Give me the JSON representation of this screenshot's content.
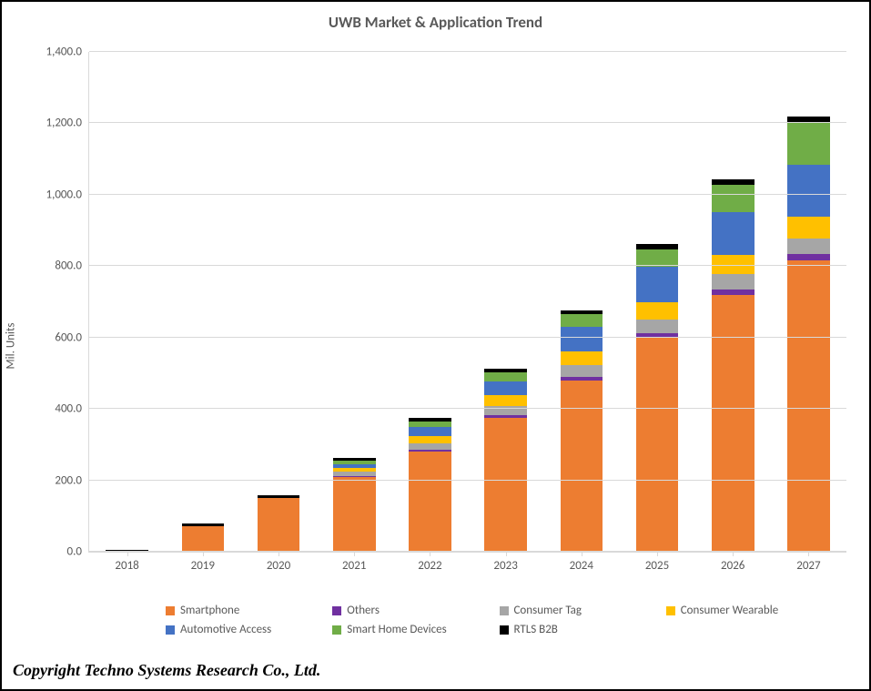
{
  "chart": {
    "type": "stacked-bar",
    "title": "UWB Market & Application Trend",
    "title_fontsize": 17,
    "ylabel": "Mil. Units",
    "ylabel_fontsize": 13,
    "background_color": "#ffffff",
    "grid_color": "#d9d9d9",
    "axis_color": "#d9d9d9",
    "tick_fontsize": 13,
    "tick_color": "#595959",
    "legend_fontsize": 13,
    "ylim": [
      0,
      1400
    ],
    "ytick_step": 200,
    "ytick_decimals": 1,
    "categories": [
      "2018",
      "2019",
      "2020",
      "2021",
      "2022",
      "2023",
      "2024",
      "2025",
      "2026",
      "2027"
    ],
    "series": [
      {
        "key": "smartphone",
        "label": "Smartphone",
        "color": "#ed7d31"
      },
      {
        "key": "others",
        "label": "Others",
        "color": "#7030a0"
      },
      {
        "key": "consumer_tag",
        "label": "Consumer Tag",
        "color": "#a6a6a6"
      },
      {
        "key": "consumer_wearable",
        "label": "Consumer Wearable",
        "color": "#ffc000"
      },
      {
        "key": "automotive_access",
        "label": "Automotive Access",
        "color": "#4472c4"
      },
      {
        "key": "smart_home",
        "label": "Smart Home Devices",
        "color": "#70ad47"
      },
      {
        "key": "rtls_b2b",
        "label": "RTLS B2B",
        "color": "#000000"
      }
    ],
    "values": {
      "smartphone": [
        0,
        72,
        150,
        210,
        280,
        375,
        480,
        600,
        720,
        815
      ],
      "others": [
        0,
        0,
        0,
        2,
        5,
        8,
        10,
        12,
        15,
        18
      ],
      "consumer_tag": [
        0,
        0,
        0,
        12,
        18,
        25,
        32,
        38,
        42,
        45
      ],
      "consumer_wearable": [
        0,
        0,
        0,
        10,
        22,
        30,
        38,
        48,
        55,
        60
      ],
      "automotive_access": [
        0,
        0,
        0,
        12,
        25,
        40,
        70,
        100,
        120,
        145
      ],
      "smart_home": [
        0,
        0,
        0,
        8,
        15,
        25,
        35,
        50,
        75,
        120
      ],
      "rtls_b2b": [
        5,
        6,
        7,
        8,
        9,
        10,
        12,
        13,
        15,
        15
      ]
    },
    "bar_width_ratio": 0.56
  },
  "copyright": "Copyright Techno Systems Research Co., Ltd.",
  "copyright_fontsize": 18
}
